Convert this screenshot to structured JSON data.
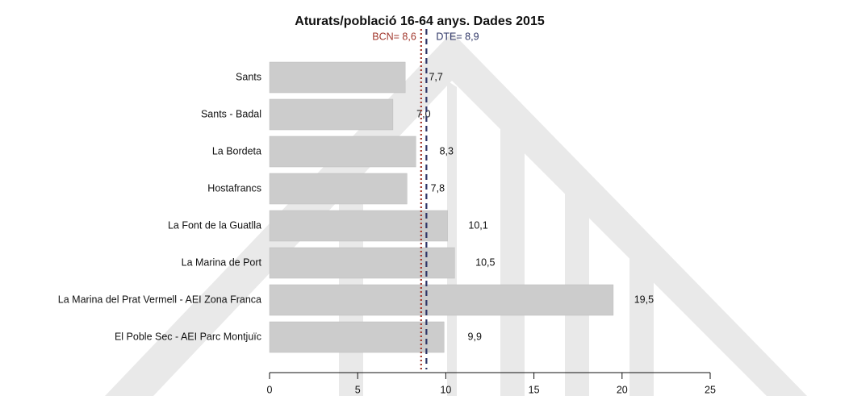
{
  "chart_data": {
    "type": "barh",
    "title": "Aturats/població 16-64 anys. Dades 2015",
    "categories": [
      "Sants",
      "Sants - Badal",
      "La Bordeta",
      "Hostafrancs",
      "La Font de la Guatlla",
      "La Marina de Port",
      "La Marina del Prat Vermell - AEI Zona Franca",
      "El Poble Sec - AEI Parc Montjuïc"
    ],
    "values": [
      7.7,
      7.0,
      8.3,
      7.8,
      10.1,
      10.5,
      19.5,
      9.9
    ],
    "value_labels": [
      "7,7",
      "7,0",
      "8,3",
      "7,8",
      "10,1",
      "10,5",
      "19,5",
      "9,9"
    ],
    "color": "#cccccc",
    "xlim": [
      0,
      25
    ],
    "xticks": [
      0,
      5,
      10,
      15,
      20,
      25
    ],
    "reference_lines": [
      {
        "name": "BCN",
        "value": 8.6,
        "label": "BCN= 8,6",
        "color": "#a0352a",
        "style": "dotted"
      },
      {
        "name": "DTE",
        "value": 8.9,
        "label": "DTE= 8,9",
        "color": "#2e3566",
        "style": "dashed"
      }
    ]
  }
}
